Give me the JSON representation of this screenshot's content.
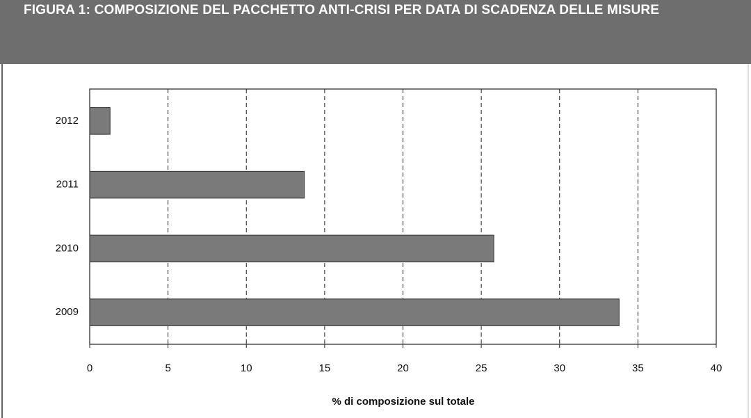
{
  "chart_data": {
    "type": "barh",
    "title": "FIGURA 1: COMPOSIZIONE DEL PACCHETTO ANTI-CRISI PER DATA DI SCADENZA DELLE MISURE",
    "xlabel": "% di composizione sul totale",
    "categories": [
      "2012",
      "2011",
      "2010",
      "2009"
    ],
    "values": [
      1.3,
      13.7,
      25.8,
      33.8
    ],
    "color": "#7a7a7a",
    "xlim": [
      0,
      40
    ],
    "xticks": [
      0,
      5,
      10,
      15,
      20,
      25,
      30,
      35,
      40
    ],
    "grid": true
  }
}
